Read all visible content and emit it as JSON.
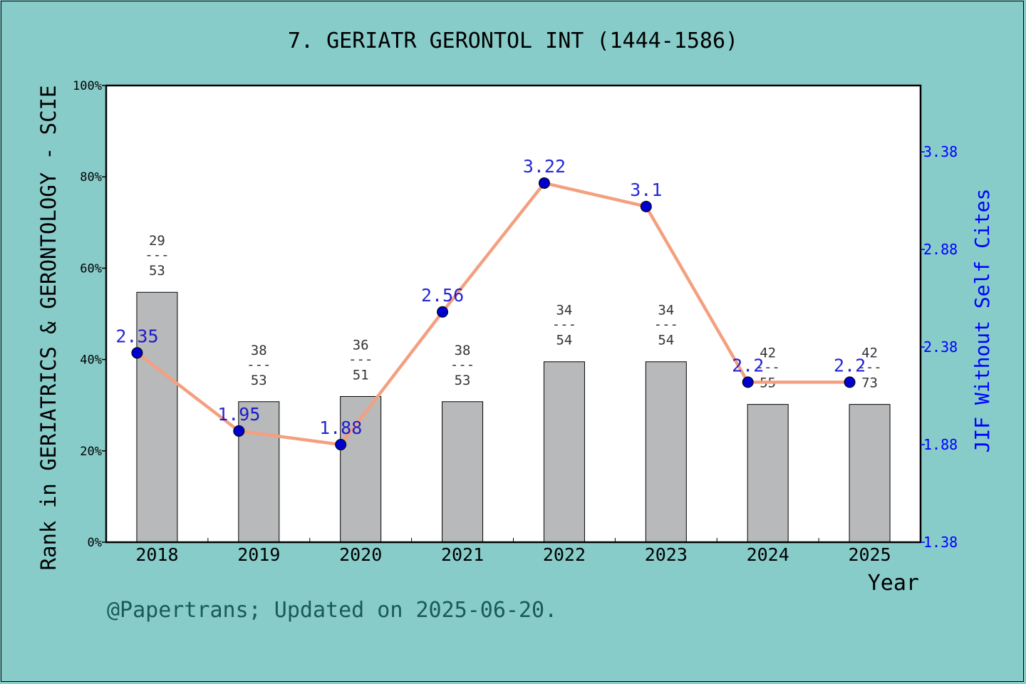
{
  "chart_data": {
    "type": "bar",
    "title": "7. GERIATR GERONTOL INT (1444-1586)",
    "xlabel": "Year",
    "ylabel": "Rank in GERIATRICS & GERONTOLOGY - SCIE",
    "y2label": "JIF Without Self Cites",
    "footnote": "@Papertrans; Updated on 2025-06-20.",
    "categories": [
      "2018",
      "2019",
      "2020",
      "2021",
      "2022",
      "2023",
      "2024",
      "2025"
    ],
    "series": [
      {
        "type": "bar",
        "axis": "left",
        "values": [
          54.72,
          30.77,
          31.91,
          30.77,
          39.51,
          39.51,
          30.17,
          30.17
        ],
        "rank": [
          "29",
          "38",
          "36",
          "38",
          "34",
          "34",
          "42",
          "42"
        ],
        "total": [
          "53",
          "53",
          "51",
          "53",
          "54",
          "54",
          "55",
          "73"
        ],
        "separator": "---"
      },
      {
        "type": "line",
        "axis": "right",
        "values": [
          2.35,
          1.95,
          1.88,
          2.56,
          3.22,
          3.1,
          2.2,
          2.2
        ],
        "labels": [
          "2.35",
          "1.95",
          "1.88",
          "2.56",
          "3.22",
          "3.1",
          "2.2",
          "2.2"
        ]
      }
    ],
    "ylim": [
      0,
      100
    ],
    "yticks": [
      "0%",
      "20%",
      "40%",
      "60%",
      "80%",
      "100%"
    ],
    "y2lim": [
      1.38,
      3.72
    ],
    "y2ticks": [
      "1.38",
      "1.88",
      "2.38",
      "2.88",
      "3.38"
    ],
    "colors": {
      "background": "#88CCCA",
      "plot_background": "#FFFFFF",
      "bar": "#B8B9BA",
      "line": "#F4A080",
      "marker": "#0000CC",
      "right_axis": "#0000FF",
      "footnote": "#1A5A55"
    }
  }
}
